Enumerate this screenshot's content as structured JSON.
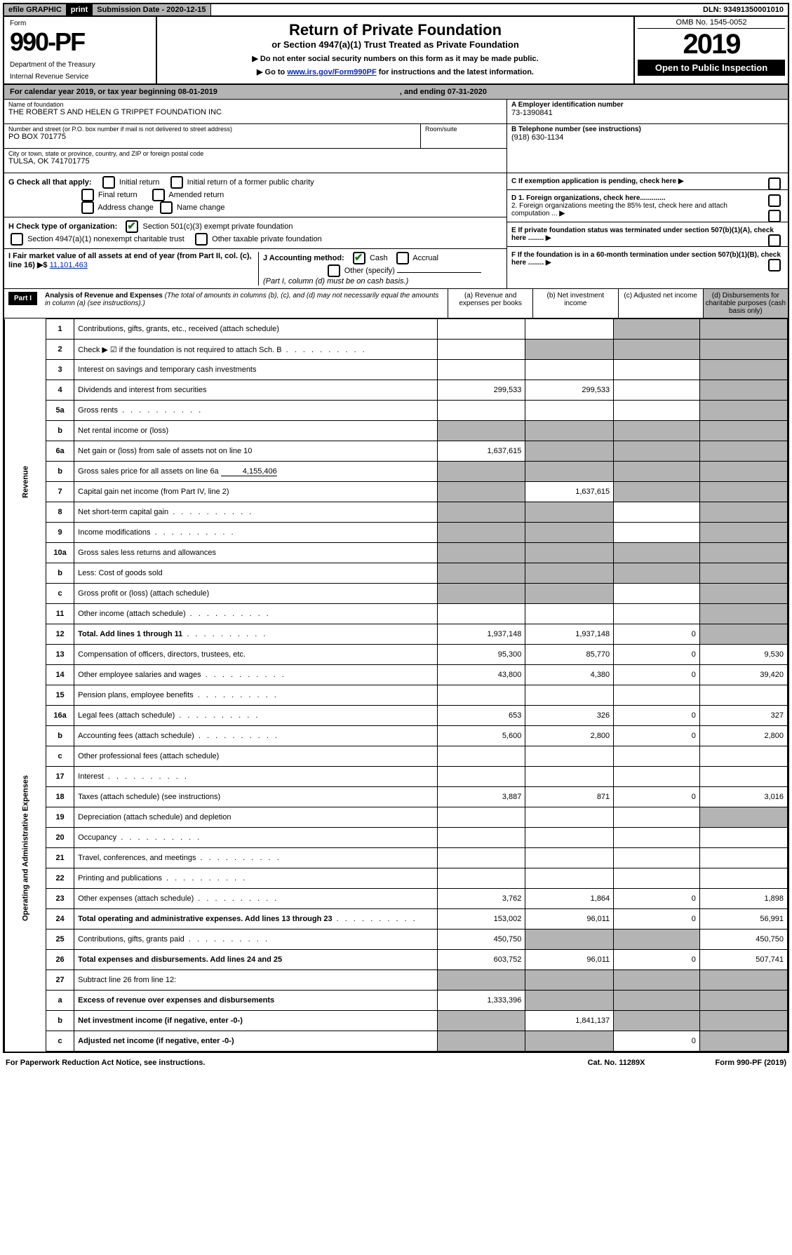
{
  "topbar": {
    "efile": "efile GRAPHIC",
    "print": "print",
    "subdate_label": "Submission Date - 2020-12-15",
    "dln": "DLN: 93491350001010"
  },
  "header": {
    "form_label": "Form",
    "form_num": "990-PF",
    "dept": "Department of the Treasury",
    "irs": "Internal Revenue Service",
    "title": "Return of Private Foundation",
    "subtitle": "or Section 4947(a)(1) Trust Treated as Private Foundation",
    "instr1": "▶ Do not enter social security numbers on this form as it may be made public.",
    "instr2_pre": "▶ Go to ",
    "instr2_link": "www.irs.gov/Form990PF",
    "instr2_post": " for instructions and the latest information.",
    "omb": "OMB No. 1545-0052",
    "year": "2019",
    "open": "Open to Public Inspection"
  },
  "cal": {
    "a": "For calendar year 2019, or tax year beginning 08-01-2019",
    "b": ", and ending 07-31-2020"
  },
  "info": {
    "name_lbl": "Name of foundation",
    "name": "THE ROBERT S AND HELEN G TRIPPET FOUNDATION INC",
    "addr_lbl": "Number and street (or P.O. box number if mail is not delivered to street address)",
    "addr": "PO BOX 701775",
    "room_lbl": "Room/suite",
    "city_lbl": "City or town, state or province, country, and ZIP or foreign postal code",
    "city": "TULSA, OK  741701775",
    "ein_lbl": "A Employer identification number",
    "ein": "73-1390841",
    "tel_lbl": "B Telephone number (see instructions)",
    "tel": "(918) 630-1134",
    "c_lbl": "C If exemption application is pending, check here",
    "d1": "D 1. Foreign organizations, check here.............",
    "d2": "2. Foreign organizations meeting the 85% test, check here and attach computation ...",
    "e": "E  If private foundation status was terminated under section 507(b)(1)(A), check here ........",
    "f": "F  If the foundation is in a 60-month termination under section 507(b)(1)(B), check here ........"
  },
  "g": {
    "label": "G Check all that apply:",
    "initial": "Initial return",
    "initial_former": "Initial return of a former public charity",
    "final": "Final return",
    "amended": "Amended return",
    "address": "Address change",
    "name": "Name change"
  },
  "h": {
    "label": "H Check type of organization:",
    "s501": "Section 501(c)(3) exempt private foundation",
    "s4947": "Section 4947(a)(1) nonexempt charitable trust",
    "other_tax": "Other taxable private foundation"
  },
  "i": {
    "label": "I Fair market value of all assets at end of year (from Part II, col. (c), line 16) ▶$",
    "val": "11,101,463"
  },
  "j": {
    "label": "J Accounting method:",
    "cash": "Cash",
    "accrual": "Accrual",
    "other": "Other (specify)",
    "note": "(Part I, column (d) must be on cash basis.)"
  },
  "part1": {
    "label": "Part I",
    "title": "Analysis of Revenue and Expenses",
    "title_note": " (The total of amounts in columns (b), (c), and (d) may not necessarily equal the amounts in column (a) (see instructions).)",
    "col_a": "(a)  Revenue and expenses per books",
    "col_b": "(b)  Net investment income",
    "col_c": "(c)  Adjusted net income",
    "col_d": "(d)  Disbursements for charitable purposes (cash basis only)"
  },
  "sections": {
    "revenue": "Revenue",
    "expenses": "Operating and Administrative Expenses"
  },
  "rows": [
    {
      "n": "1",
      "d": "Contributions, gifts, grants, etc., received (attach schedule)",
      "a": "",
      "b": "",
      "c_s": true,
      "d_s": true
    },
    {
      "n": "2",
      "d": "Check ▶ ☑ if the foundation is not required to attach Sch. B",
      "dots": true,
      "a": "",
      "b": "",
      "c_s": true,
      "d_s": true,
      "b_s": true
    },
    {
      "n": "3",
      "d": "Interest on savings and temporary cash investments",
      "a": "",
      "b": "",
      "c": "",
      "d_s": true
    },
    {
      "n": "4",
      "d": "Dividends and interest from securities",
      "dots": false,
      "a": "299,533",
      "b": "299,533",
      "c": "",
      "d_s": true
    },
    {
      "n": "5a",
      "d": "Gross rents",
      "dots": true,
      "a": "",
      "b": "",
      "c": "",
      "d_s": true
    },
    {
      "n": "b",
      "d": "Net rental income or (loss)",
      "a_s": true,
      "b_s": true,
      "c_s": true,
      "d_s": true
    },
    {
      "n": "6a",
      "d": "Net gain or (loss) from sale of assets not on line 10",
      "a": "1,637,615",
      "b_s": true,
      "c_s": true,
      "d_s": true
    },
    {
      "n": "b",
      "d": "Gross sales price for all assets on line 6a",
      "inline": "4,155,406",
      "a_s": true,
      "b_s": true,
      "c_s": true,
      "d_s": true
    },
    {
      "n": "7",
      "d": "Capital gain net income (from Part IV, line 2)",
      "a_s": true,
      "b": "1,637,615",
      "c_s": true,
      "d_s": true
    },
    {
      "n": "8",
      "d": "Net short-term capital gain",
      "dots": true,
      "a_s": true,
      "b_s": true,
      "c": "",
      "d_s": true
    },
    {
      "n": "9",
      "d": "Income modifications",
      "dots": true,
      "a_s": true,
      "b_s": true,
      "c": "",
      "d_s": true
    },
    {
      "n": "10a",
      "d": "Gross sales less returns and allowances",
      "a_s": true,
      "b_s": true,
      "c_s": true,
      "d_s": true
    },
    {
      "n": "b",
      "d": "Less: Cost of goods sold",
      "dots": false,
      "a_s": true,
      "b_s": true,
      "c_s": true,
      "d_s": true
    },
    {
      "n": "c",
      "d": "Gross profit or (loss) (attach schedule)",
      "a_s": true,
      "b_s": true,
      "c": "",
      "d_s": true
    },
    {
      "n": "11",
      "d": "Other income (attach schedule)",
      "dots": true,
      "a": "",
      "b": "",
      "c": "",
      "d_s": true
    },
    {
      "n": "12",
      "d": "Total. Add lines 1 through 11",
      "bold": true,
      "dots": true,
      "a": "1,937,148",
      "b": "1,937,148",
      "c": "0",
      "d_s": true
    },
    {
      "n": "13",
      "d": "Compensation of officers, directors, trustees, etc.",
      "a": "95,300",
      "b": "85,770",
      "c": "0",
      "dd": "9,530",
      "sec": "exp"
    },
    {
      "n": "14",
      "d": "Other employee salaries and wages",
      "dots": true,
      "a": "43,800",
      "b": "4,380",
      "c": "0",
      "dd": "39,420"
    },
    {
      "n": "15",
      "d": "Pension plans, employee benefits",
      "dots": true,
      "a": "",
      "b": "",
      "c": "",
      "dd": ""
    },
    {
      "n": "16a",
      "d": "Legal fees (attach schedule)",
      "dots": true,
      "a": "653",
      "b": "326",
      "c": "0",
      "dd": "327"
    },
    {
      "n": "b",
      "d": "Accounting fees (attach schedule)",
      "dots": true,
      "a": "5,600",
      "b": "2,800",
      "c": "0",
      "dd": "2,800"
    },
    {
      "n": "c",
      "d": "Other professional fees (attach schedule)",
      "a": "",
      "b": "",
      "c": "",
      "dd": ""
    },
    {
      "n": "17",
      "d": "Interest",
      "dots": true,
      "a": "",
      "b": "",
      "c": "",
      "dd": ""
    },
    {
      "n": "18",
      "d": "Taxes (attach schedule) (see instructions)",
      "a": "3,887",
      "b": "871",
      "c": "0",
      "dd": "3,016"
    },
    {
      "n": "19",
      "d": "Depreciation (attach schedule) and depletion",
      "a": "",
      "b": "",
      "c": "",
      "d_s": true
    },
    {
      "n": "20",
      "d": "Occupancy",
      "dots": true,
      "a": "",
      "b": "",
      "c": "",
      "dd": ""
    },
    {
      "n": "21",
      "d": "Travel, conferences, and meetings",
      "dots": true,
      "a": "",
      "b": "",
      "c": "",
      "dd": ""
    },
    {
      "n": "22",
      "d": "Printing and publications",
      "dots": true,
      "a": "",
      "b": "",
      "c": "",
      "dd": ""
    },
    {
      "n": "23",
      "d": "Other expenses (attach schedule)",
      "dots": true,
      "a": "3,762",
      "b": "1,864",
      "c": "0",
      "dd": "1,898"
    },
    {
      "n": "24",
      "d": "Total operating and administrative expenses. Add lines 13 through 23",
      "bold": true,
      "dots": true,
      "a": "153,002",
      "b": "96,011",
      "c": "0",
      "dd": "56,991"
    },
    {
      "n": "25",
      "d": "Contributions, gifts, grants paid",
      "dots": true,
      "a": "450,750",
      "b_s": true,
      "c_s": true,
      "dd": "450,750"
    },
    {
      "n": "26",
      "d": "Total expenses and disbursements. Add lines 24 and 25",
      "bold": true,
      "a": "603,752",
      "b": "96,011",
      "c": "0",
      "dd": "507,741"
    },
    {
      "n": "27",
      "d": "Subtract line 26 from line 12:",
      "a_s": true,
      "b_s": true,
      "c_s": true,
      "d_s": true
    },
    {
      "n": "a",
      "d": "Excess of revenue over expenses and disbursements",
      "bold": true,
      "a": "1,333,396",
      "b_s": true,
      "c_s": true,
      "d_s": true
    },
    {
      "n": "b",
      "d": "Net investment income (if negative, enter -0-)",
      "bold": true,
      "a_s": true,
      "b": "1,841,137",
      "c_s": true,
      "d_s": true
    },
    {
      "n": "c",
      "d": "Adjusted net income (if negative, enter -0-)",
      "bold": true,
      "a_s": true,
      "b_s": true,
      "c": "0",
      "d_s": true
    }
  ],
  "footer": {
    "a": "For Paperwork Reduction Act Notice, see instructions.",
    "b": "Cat. No. 11289X",
    "c": "Form 990-PF (2019)"
  }
}
